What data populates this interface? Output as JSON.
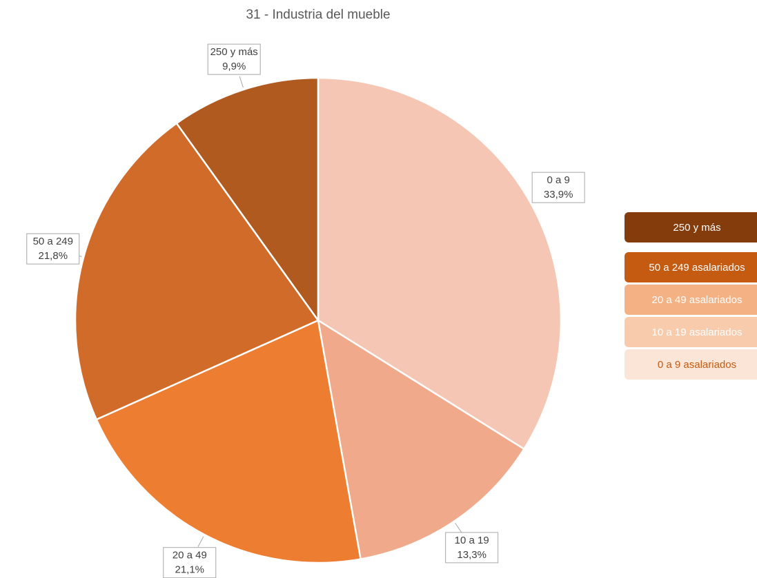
{
  "chart_data": {
    "type": "pie",
    "title": "31 - Industria del mueble",
    "categories": [
      "0 a 9",
      "10 a 19",
      "20 a 49",
      "50 a 249",
      "250 y más"
    ],
    "values": [
      33.9,
      13.3,
      21.1,
      21.8,
      9.9
    ],
    "value_labels": [
      "33,9%",
      "13,3%",
      "21,1%",
      "21,8%",
      "9,9%"
    ],
    "colors": [
      "#F5C6B4",
      "#F0A98A",
      "#ED7D31",
      "#D06B2A",
      "#B05A20"
    ],
    "legend": [
      {
        "label": "250 y más",
        "color": "#843C0C",
        "text_color": "#FFFFFF"
      },
      {
        "label": "50 a 249 asalariados",
        "color": "#C55A11",
        "text_color": "#FFFFFF"
      },
      {
        "label": "20 a 49 asalariados",
        "color": "#F4B183",
        "text_color": "#FFFFFF"
      },
      {
        "label": "10 a 19 asalariados",
        "color": "#F8CBAD",
        "text_color": "#FFFFFF"
      },
      {
        "label": "0 a 9 asalariados",
        "color": "#FBE5D6",
        "text_color": "#C55A11"
      }
    ]
  }
}
